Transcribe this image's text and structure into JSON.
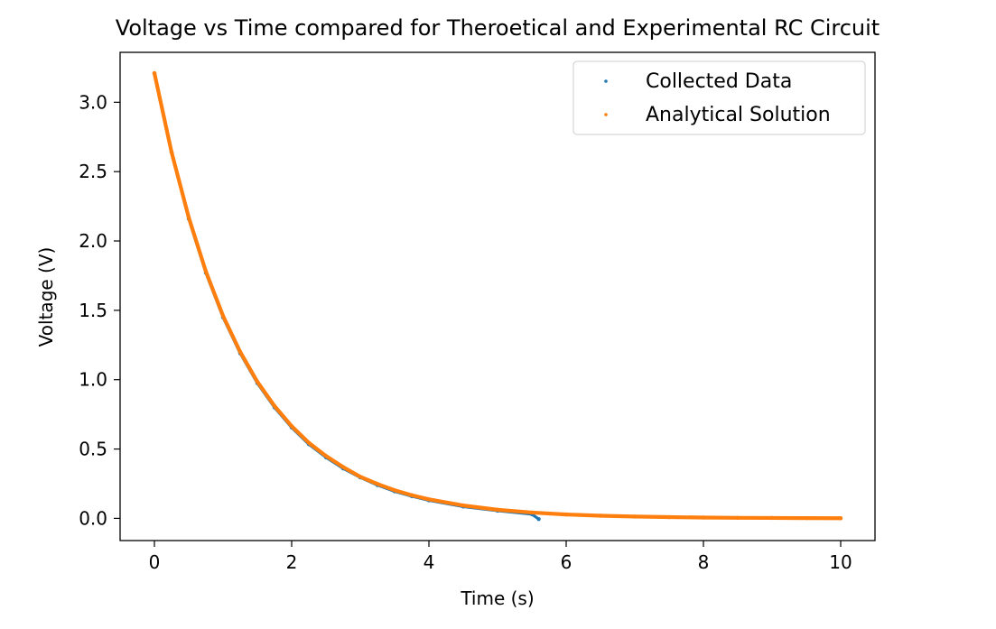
{
  "chart_data": {
    "type": "scatter",
    "title": "Voltage vs Time compared for Theroetical and Experimental RC Circuit",
    "xlabel": "Time (s)",
    "ylabel": "Voltage (V)",
    "xlim": [
      -0.5,
      10.5
    ],
    "ylim": [
      -0.16,
      3.36
    ],
    "x_ticks": [
      0,
      2,
      4,
      6,
      8,
      10
    ],
    "x_tick_labels": [
      "0",
      "2",
      "4",
      "6",
      "8",
      "10"
    ],
    "y_ticks": [
      0.0,
      0.5,
      1.0,
      1.5,
      2.0,
      2.5,
      3.0
    ],
    "y_tick_labels": [
      "0.0",
      "0.5",
      "1.0",
      "1.5",
      "2.0",
      "2.5",
      "3.0"
    ],
    "grid": false,
    "legend": {
      "position": "top-right",
      "entries": [
        "Collected Data",
        "Analytical Solution"
      ]
    },
    "series": [
      {
        "name": "Collected Data",
        "color": "#1f77b4",
        "x": [
          0.0,
          0.25,
          0.5,
          0.75,
          1.0,
          1.25,
          1.5,
          1.75,
          2.0,
          2.25,
          2.5,
          2.75,
          3.0,
          3.25,
          3.5,
          3.75,
          4.0,
          4.5,
          5.0,
          5.5,
          5.6
        ],
        "y": [
          3.21,
          2.64,
          2.16,
          1.77,
          1.45,
          1.19,
          0.975,
          0.8,
          0.655,
          0.535,
          0.44,
          0.36,
          0.295,
          0.24,
          0.195,
          0.16,
          0.13,
          0.085,
          0.055,
          0.03,
          -0.005
        ]
      },
      {
        "name": "Analytical Solution",
        "color": "#ff7f0e",
        "x": [
          0.0,
          0.25,
          0.5,
          0.75,
          1.0,
          1.25,
          1.5,
          1.75,
          2.0,
          2.25,
          2.5,
          2.75,
          3.0,
          3.25,
          3.5,
          3.75,
          4.0,
          4.5,
          5.0,
          5.5,
          6.0,
          6.5,
          7.0,
          7.5,
          8.0,
          8.5,
          9.0,
          9.5,
          10.0
        ],
        "y": [
          3.21,
          2.64,
          2.17,
          1.78,
          1.46,
          1.2,
          0.985,
          0.81,
          0.665,
          0.545,
          0.45,
          0.37,
          0.3,
          0.248,
          0.203,
          0.167,
          0.137,
          0.093,
          0.062,
          0.042,
          0.028,
          0.019,
          0.013,
          0.009,
          0.006,
          0.004,
          0.003,
          0.002,
          0.001
        ]
      }
    ]
  }
}
